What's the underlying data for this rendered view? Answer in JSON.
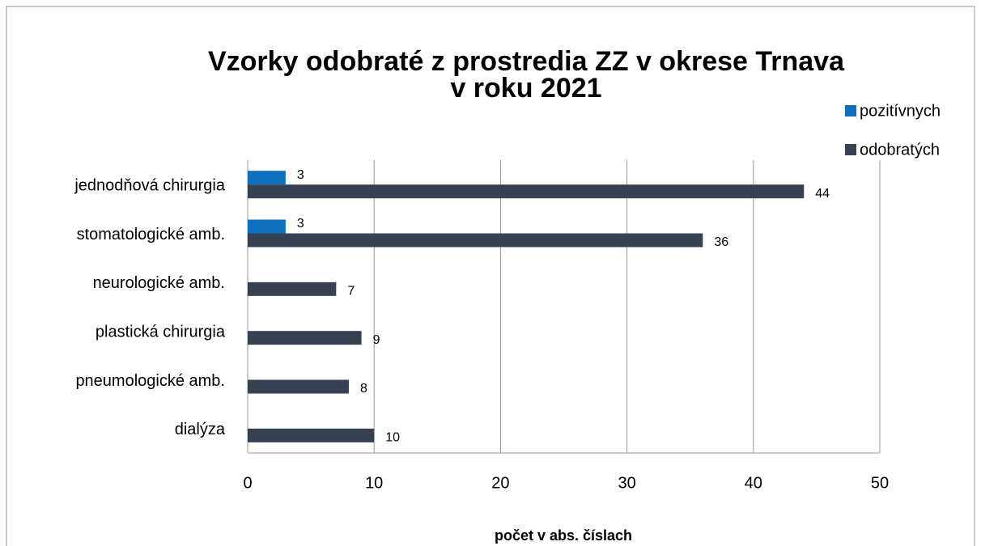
{
  "chart_data": {
    "type": "barh",
    "title": [
      "Vzorky odobraté z prostredia ZZ v okrese Trnava",
      "v roku 2021"
    ],
    "xlabel": "počet v abs. číslach",
    "categories": [
      "jednodňová chirurgia",
      "stomatologické amb.",
      "neurologické amb.",
      "plastická chirurgia",
      "pneumologické amb.",
      "dialýza"
    ],
    "series": [
      {
        "name": "pozitívnych",
        "color": "#0f70c0",
        "values": [
          3,
          3,
          null,
          null,
          null,
          null
        ]
      },
      {
        "name": "odobratých",
        "color": "#364152",
        "values": [
          44,
          36,
          7,
          9,
          8,
          10
        ]
      }
    ],
    "xlim": [
      0,
      50
    ],
    "xticks": [
      0,
      10,
      20,
      30,
      40,
      50
    ],
    "grid": true,
    "legend": "top-right"
  }
}
